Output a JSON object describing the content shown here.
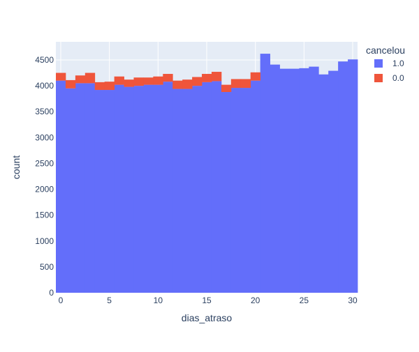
{
  "chart_data": {
    "type": "bar",
    "barmode": "stack",
    "title": "",
    "xlabel": "dias_atraso",
    "ylabel": "count",
    "x": [
      0,
      1,
      2,
      3,
      4,
      5,
      6,
      7,
      8,
      9,
      10,
      11,
      12,
      13,
      14,
      15,
      16,
      17,
      18,
      19,
      20,
      21,
      22,
      23,
      24,
      25,
      26,
      27,
      28,
      29,
      30
    ],
    "xlim": [
      -0.5,
      30.5
    ],
    "ylim": [
      0,
      4850
    ],
    "x_ticks": [
      0,
      5,
      10,
      15,
      20,
      25,
      30
    ],
    "y_ticks": [
      0,
      500,
      1000,
      1500,
      2000,
      2500,
      3000,
      3500,
      4000,
      4500
    ],
    "legend": {
      "title": "cancelou",
      "position": "top-right"
    },
    "grid": true,
    "series": [
      {
        "name": "1.0",
        "color": "#636efa",
        "values": [
          4100,
          3950,
          4050,
          4050,
          3920,
          3920,
          4020,
          3980,
          4000,
          4020,
          4020,
          4080,
          3940,
          3940,
          4000,
          4070,
          4090,
          3880,
          3960,
          3960,
          4100,
          4620,
          4410,
          4330,
          4330,
          4340,
          4370,
          4220,
          4290,
          4470,
          4510
        ]
      },
      {
        "name": "0.0",
        "color": "#ef553b",
        "values": [
          150,
          160,
          150,
          200,
          150,
          160,
          160,
          140,
          160,
          140,
          160,
          150,
          160,
          180,
          170,
          160,
          180,
          140,
          170,
          170,
          160,
          0,
          0,
          0,
          0,
          0,
          0,
          0,
          0,
          0,
          0
        ]
      }
    ]
  }
}
